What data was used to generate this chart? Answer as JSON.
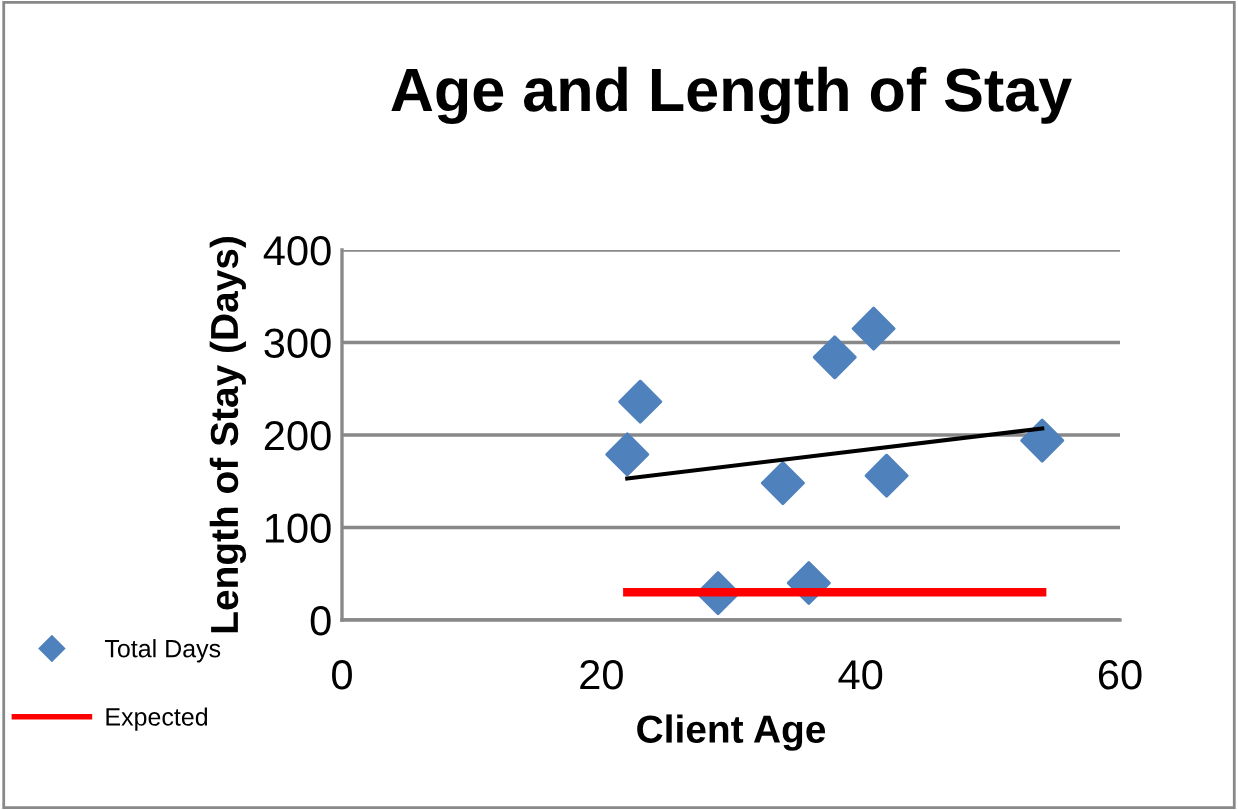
{
  "chart_data": {
    "type": "scatter",
    "title": "Age and Length of Stay",
    "xlabel": "Client Age",
    "ylabel": "Length of Stay (Days)",
    "xlim": [
      0,
      60
    ],
    "xticks": [
      0,
      20,
      40,
      60
    ],
    "ylim": [
      0,
      400
    ],
    "yticks": [
      0,
      100,
      200,
      300,
      400
    ],
    "grid": "y",
    "legend": "bottom left",
    "series": [
      {
        "name": "Total Days",
        "marker": "diamond",
        "color": "#4f81bd",
        "x": [
          22,
          23,
          29,
          34,
          36,
          38,
          41,
          42,
          54
        ],
        "values": [
          179,
          236,
          29,
          148,
          40,
          284,
          315,
          156,
          194
        ]
      },
      {
        "name": "Expected",
        "type": "line",
        "color": "#ff0000",
        "x": [
          22,
          54
        ],
        "values": [
          30,
          30
        ]
      },
      {
        "type": "line",
        "color": "#000000",
        "x": [
          22,
          54
        ],
        "values": [
          153,
          207
        ]
      }
    ]
  }
}
